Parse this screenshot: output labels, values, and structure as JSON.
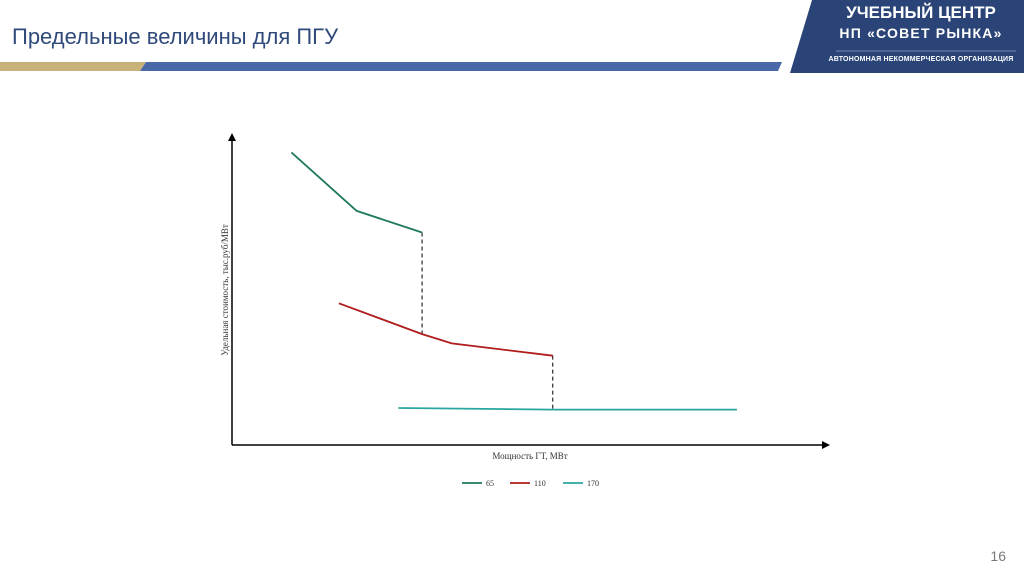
{
  "slide": {
    "title": "Предельные величины для ПГУ",
    "page_number": "16"
  },
  "brand": {
    "line1": "УЧЕБНЫЙ ЦЕНТР",
    "line2": "НП «СОВЕТ РЫНКА»",
    "line3": "АВТОНОМНАЯ НЕКОММЕРЧЕСКАЯ ОРГАНИЗАЦИЯ",
    "colors": {
      "navy": "#2b4478",
      "gold": "#c8b27a",
      "blue_bar": "#4a67a8"
    }
  },
  "chart_data": {
    "type": "line",
    "title": "",
    "xlabel": "Мощность ГТ, МВт",
    "ylabel": "Удельная стоимость, тыс.руб/МВт",
    "xlim": [
      0,
      10
    ],
    "ylim": [
      0,
      10
    ],
    "grid": false,
    "axis_ticks": false,
    "legend_position": "bottom",
    "series": [
      {
        "name": "65",
        "color": "#1f7a5a",
        "x": [
          1.0,
          2.1,
          3.2
        ],
        "y": [
          9.5,
          7.6,
          6.9
        ]
      },
      {
        "name": "110",
        "color": "#b01c1c",
        "x": [
          1.8,
          3.2,
          3.7,
          5.4
        ],
        "y": [
          4.6,
          3.6,
          3.3,
          2.9
        ]
      },
      {
        "name": "170",
        "color": "#2aa6a0",
        "x": [
          2.8,
          5.4,
          8.5
        ],
        "y": [
          1.2,
          1.15,
          1.15
        ]
      }
    ],
    "dashed_connectors": [
      {
        "x": 3.2,
        "from_y": 6.9,
        "to_y": 3.6
      },
      {
        "x": 5.4,
        "from_y": 2.9,
        "to_y": 1.15
      }
    ]
  }
}
